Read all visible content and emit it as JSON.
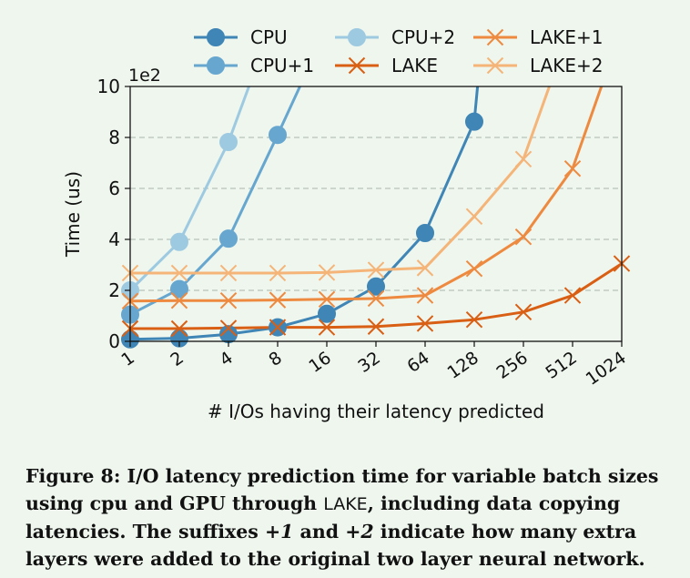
{
  "chart_data": {
    "type": "line",
    "multiplier_label": "1e2",
    "xlabel": "# I/Os having their latency predicted",
    "ylabel": "Time (us)",
    "categories": [
      "1",
      "2",
      "4",
      "8",
      "16",
      "32",
      "64",
      "128",
      "256",
      "512",
      "1024"
    ],
    "yticks": [
      "0",
      "2",
      "4",
      "6",
      "8",
      "10"
    ],
    "ylim": [
      0,
      10
    ],
    "y_scale_note": "values in units of 1e2 us",
    "grid": "horizontal dashed",
    "legend": "top, two rows",
    "series": [
      {
        "name": "CPU",
        "marker": "circle",
        "color": "#3f85b5",
        "values": [
          0.08,
          0.12,
          0.28,
          0.55,
          1.08,
          2.15,
          4.25,
          8.62,
          null,
          null,
          null
        ],
        "beyond_top_at": 7.07
      },
      {
        "name": "CPU+1",
        "marker": "circle",
        "color": "#66a6cf",
        "values": [
          1.05,
          2.05,
          4.03,
          8.1,
          null,
          null,
          null,
          null,
          null,
          null,
          null
        ],
        "beyond_top_at": 3.47
      },
      {
        "name": "CPU+2",
        "marker": "circle",
        "color": "#9ecae1",
        "values": [
          2.0,
          3.9,
          7.82,
          null,
          null,
          null,
          null,
          null,
          null,
          null,
          null
        ],
        "beyond_top_at": 2.43
      },
      {
        "name": "LAKE",
        "marker": "x",
        "color": "#d95f14",
        "values": [
          0.5,
          0.5,
          0.52,
          0.55,
          0.55,
          0.58,
          0.7,
          0.85,
          1.15,
          1.8,
          3.05
        ]
      },
      {
        "name": "LAKE+1",
        "marker": "x",
        "color": "#ee8a40",
        "values": [
          1.58,
          1.6,
          1.6,
          1.62,
          1.65,
          1.68,
          1.8,
          2.85,
          4.1,
          6.78,
          null
        ],
        "beyond_top_at": 9.6
      },
      {
        "name": "LAKE+2",
        "marker": "x",
        "color": "#f5b478",
        "values": [
          2.68,
          2.68,
          2.68,
          2.68,
          2.7,
          2.8,
          2.88,
          4.9,
          7.15,
          null,
          null
        ],
        "beyond_top_at": 8.54
      }
    ]
  },
  "caption": {
    "part1": "Figure 8: I/O latency prediction time for variable batch sizes using cpu and GPU through ",
    "lake": "LAKE",
    "part2": ", including data copying latencies. The suffixes ",
    "plus1": "+1",
    "and": " and ",
    "plus2": "+2",
    "part3": " indicate how many extra layers were added to the original two layer neural network."
  }
}
